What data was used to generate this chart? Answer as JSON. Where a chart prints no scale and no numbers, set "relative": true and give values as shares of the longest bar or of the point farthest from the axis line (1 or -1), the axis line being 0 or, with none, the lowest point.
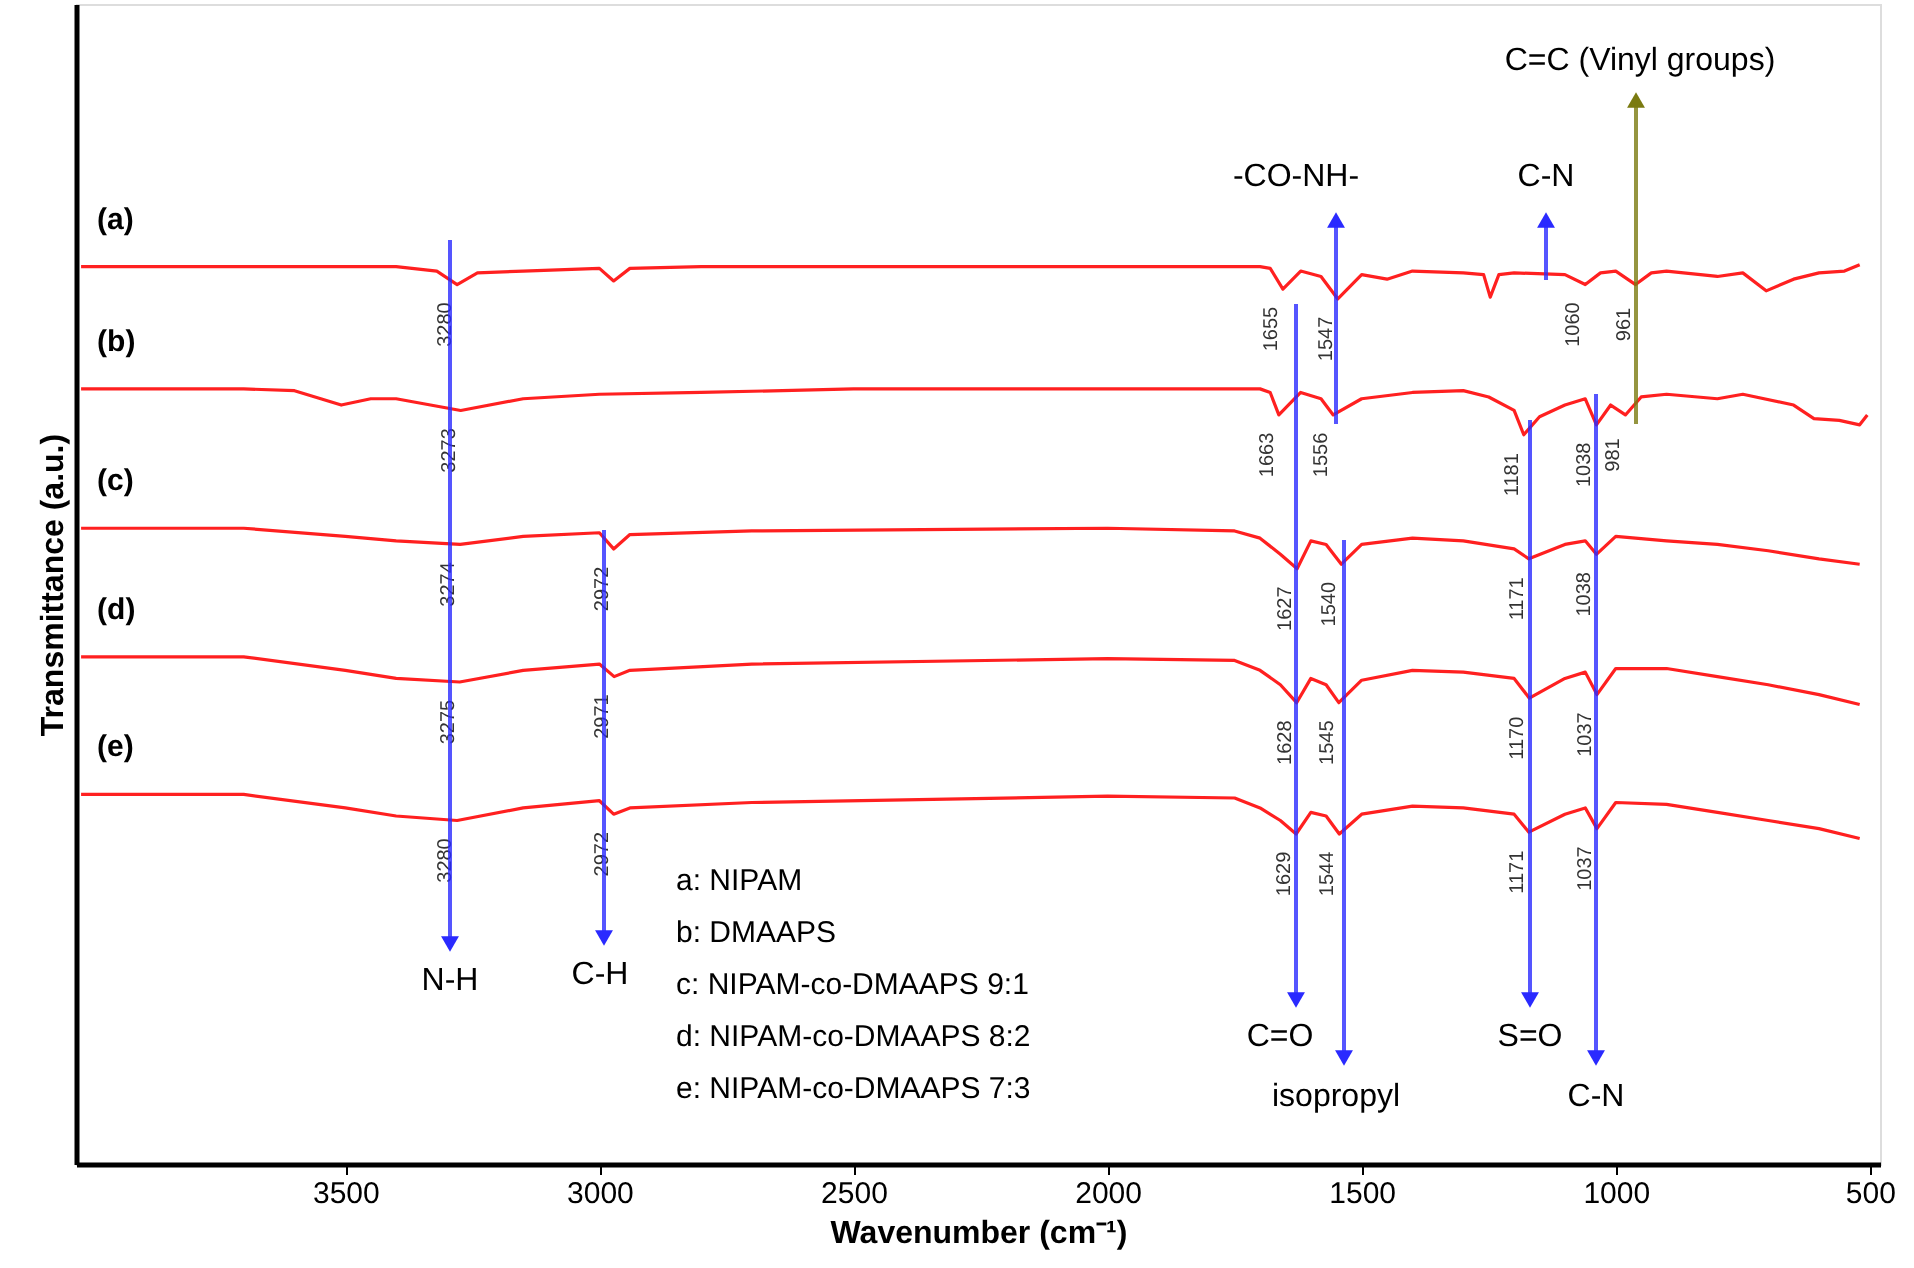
{
  "chart_data": {
    "type": "line",
    "relative": true,
    "xlabel": "Wavenumber (cm⁻¹)",
    "ylabel": "Transmittance (a.u.)",
    "xlim": [
      4030,
      480
    ],
    "xticks": [
      3500,
      3000,
      2500,
      2000,
      1500,
      1000,
      500
    ],
    "grid": false,
    "line_style": "solid",
    "marker": "none",
    "series": [
      {
        "name": "(a)",
        "color": "#ff2020",
        "x": [
          4020,
          3600,
          3400,
          3320,
          3280,
          3240,
          3150,
          3000,
          2972,
          2940,
          2800,
          2500,
          2000,
          1700,
          1680,
          1655,
          1620,
          1580,
          1547,
          1500,
          1450,
          1400,
          1300,
          1260,
          1247,
          1230,
          1200,
          1100,
          1060,
          1030,
          1000,
          961,
          930,
          900,
          800,
          750,
          704,
          650,
          600,
          550,
          520
        ],
        "values": [
          0.998,
          0.998,
          0.998,
          0.993,
          0.978,
          0.991,
          0.993,
          0.996,
          0.982,
          0.996,
          0.998,
          0.998,
          0.998,
          0.998,
          0.996,
          0.973,
          0.993,
          0.987,
          0.962,
          0.989,
          0.984,
          0.993,
          0.991,
          0.989,
          0.964,
          0.989,
          0.991,
          0.989,
          0.978,
          0.991,
          0.993,
          0.978,
          0.991,
          0.993,
          0.987,
          0.991,
          0.971,
          0.984,
          0.991,
          0.993,
          1.0
        ]
      },
      {
        "name": "(b)",
        "color": "#ff2020",
        "x": [
          4020,
          3700,
          3600,
          3508,
          3450,
          3400,
          3273,
          3150,
          3000,
          2800,
          2500,
          2000,
          1700,
          1680,
          1663,
          1620,
          1580,
          1556,
          1500,
          1400,
          1300,
          1250,
          1200,
          1181,
          1150,
          1100,
          1060,
          1038,
          1010,
          981,
          950,
          900,
          800,
          750,
          650,
          610,
          560,
          520,
          505
        ],
        "values": [
          0.862,
          0.862,
          0.86,
          0.844,
          0.851,
          0.851,
          0.838,
          0.851,
          0.856,
          0.858,
          0.862,
          0.862,
          0.862,
          0.858,
          0.833,
          0.858,
          0.851,
          0.833,
          0.851,
          0.858,
          0.86,
          0.853,
          0.838,
          0.811,
          0.831,
          0.844,
          0.851,
          0.822,
          0.844,
          0.833,
          0.853,
          0.856,
          0.851,
          0.856,
          0.844,
          0.829,
          0.827,
          0.822,
          0.833
        ]
      },
      {
        "name": "(c)",
        "color": "#ff2020",
        "x": [
          4020,
          3700,
          3500,
          3400,
          3274,
          3150,
          3000,
          2972,
          2940,
          2700,
          2000,
          1750,
          1700,
          1660,
          1627,
          1600,
          1570,
          1540,
          1500,
          1400,
          1300,
          1200,
          1171,
          1100,
          1060,
          1038,
          1000,
          900,
          800,
          700,
          600,
          520
        ],
        "values": [
          0.707,
          0.707,
          0.698,
          0.693,
          0.689,
          0.698,
          0.702,
          0.684,
          0.7,
          0.704,
          0.707,
          0.704,
          0.696,
          0.678,
          0.662,
          0.693,
          0.689,
          0.667,
          0.689,
          0.696,
          0.693,
          0.684,
          0.673,
          0.689,
          0.693,
          0.678,
          0.698,
          0.693,
          0.689,
          0.682,
          0.673,
          0.667
        ]
      },
      {
        "name": "(d)",
        "color": "#ff2020",
        "x": [
          4020,
          3700,
          3500,
          3400,
          3275,
          3150,
          3000,
          2971,
          2940,
          2700,
          2000,
          1750,
          1700,
          1660,
          1628,
          1600,
          1570,
          1545,
          1500,
          1400,
          1300,
          1200,
          1170,
          1100,
          1060,
          1037,
          1000,
          900,
          800,
          700,
          600,
          520
        ],
        "values": [
          0.564,
          0.564,
          0.549,
          0.54,
          0.536,
          0.549,
          0.556,
          0.542,
          0.549,
          0.556,
          0.562,
          0.56,
          0.549,
          0.533,
          0.513,
          0.54,
          0.533,
          0.513,
          0.538,
          0.549,
          0.547,
          0.54,
          0.518,
          0.54,
          0.547,
          0.522,
          0.551,
          0.551,
          0.542,
          0.533,
          0.522,
          0.511
        ]
      },
      {
        "name": "(e)",
        "color": "#ff2020",
        "x": [
          4020,
          3700,
          3500,
          3400,
          3280,
          3150,
          3000,
          2972,
          2940,
          2700,
          2000,
          1750,
          1700,
          1660,
          1629,
          1600,
          1570,
          1544,
          1500,
          1400,
          1300,
          1200,
          1171,
          1100,
          1060,
          1037,
          1000,
          900,
          800,
          700,
          600,
          520
        ],
        "values": [
          0.411,
          0.411,
          0.396,
          0.387,
          0.382,
          0.396,
          0.404,
          0.389,
          0.396,
          0.402,
          0.409,
          0.407,
          0.396,
          0.382,
          0.367,
          0.391,
          0.387,
          0.367,
          0.389,
          0.398,
          0.396,
          0.389,
          0.369,
          0.389,
          0.396,
          0.373,
          0.402,
          0.4,
          0.391,
          0.382,
          0.373,
          0.362
        ]
      }
    ],
    "annotations": [
      {
        "text": "3280",
        "x": 3280,
        "y": 0.978
      },
      {
        "text": "1655",
        "x": 1655,
        "y": 0.973
      },
      {
        "text": "1547",
        "x": 1547,
        "y": 0.962
      },
      {
        "text": "1060",
        "x": 1060,
        "y": 0.978
      },
      {
        "text": "961",
        "x": 961,
        "y": 0.978
      },
      {
        "text": "3273",
        "x": 3273,
        "y": 0.838
      },
      {
        "text": "1663",
        "x": 1663,
        "y": 0.833
      },
      {
        "text": "1556",
        "x": 1556,
        "y": 0.833
      },
      {
        "text": "1181",
        "x": 1181,
        "y": 0.811
      },
      {
        "text": "1038",
        "x": 1038,
        "y": 0.822
      },
      {
        "text": "981",
        "x": 981,
        "y": 0.833
      },
      {
        "text": "3274",
        "x": 3274,
        "y": 0.689
      },
      {
        "text": "2972",
        "x": 2972,
        "y": 0.684
      },
      {
        "text": "1627",
        "x": 1627,
        "y": 0.662
      },
      {
        "text": "1540",
        "x": 1540,
        "y": 0.667
      },
      {
        "text": "1171",
        "x": 1171,
        "y": 0.673
      },
      {
        "text": "1038",
        "x": 1038,
        "y": 0.678
      },
      {
        "text": "3275",
        "x": 3275,
        "y": 0.536
      },
      {
        "text": "2971",
        "x": 2971,
        "y": 0.542
      },
      {
        "text": "1628",
        "x": 1628,
        "y": 0.513
      },
      {
        "text": "1545",
        "x": 1545,
        "y": 0.513
      },
      {
        "text": "1170",
        "x": 1170,
        "y": 0.518
      },
      {
        "text": "1037",
        "x": 1037,
        "y": 0.522
      },
      {
        "text": "3280",
        "x": 3280,
        "y": 0.382
      },
      {
        "text": "2972",
        "x": 2972,
        "y": 0.389
      },
      {
        "text": "1629",
        "x": 1629,
        "y": 0.367
      },
      {
        "text": "1544",
        "x": 1544,
        "y": 0.367
      },
      {
        "text": "1171",
        "x": 1171,
        "y": 0.369
      },
      {
        "text": "1037",
        "x": 1037,
        "y": 0.373
      },
      "N-H",
      "C-H",
      "C=O",
      "isopropyl",
      "S=O",
      "C-N",
      "-CO-NH-",
      "C-N",
      "C=C (Vinyl groups)",
      "a: NIPAM",
      "b: DMAAPS",
      "c: NIPAM-co-DMAAPS 9:1",
      "d: NIPAM-co-DMAAPS 8:2",
      "e: NIPAM-co-DMAAPS 7:3"
    ]
  }
}
